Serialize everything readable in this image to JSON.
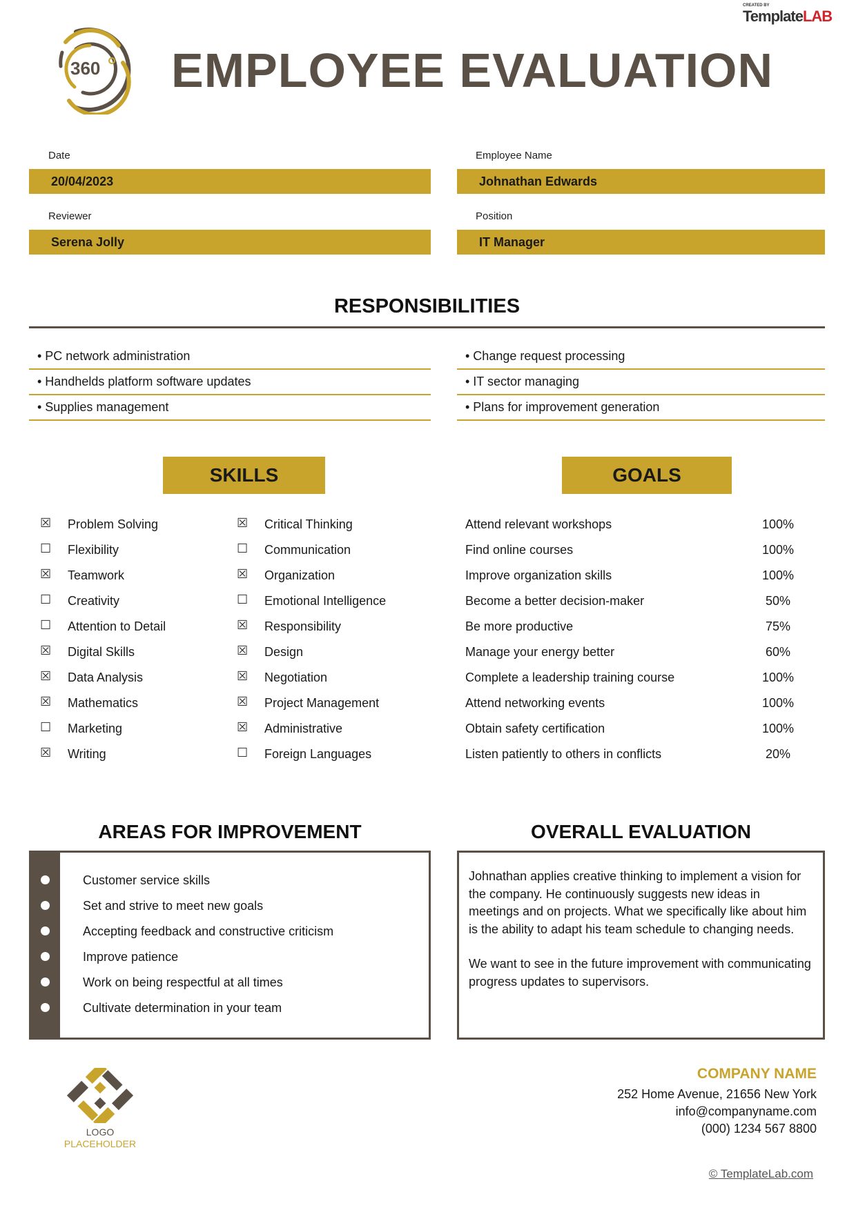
{
  "header": {
    "title": "EMPLOYEE EVALUATION",
    "logo_text": "360",
    "brand": {
      "created_by": "CREATED BY",
      "template": "Template",
      "lab": "LAB"
    }
  },
  "fields": {
    "date": {
      "label": "Date",
      "value": "20/04/2023"
    },
    "employee_name": {
      "label": "Employee Name",
      "value": "Johnathan Edwards"
    },
    "reviewer": {
      "label": "Reviewer",
      "value": "Serena Jolly"
    },
    "position": {
      "label": "Position",
      "value": "IT Manager"
    }
  },
  "responsibilities": {
    "title": "RESPONSIBILITIES",
    "left": [
      "• PC network administration",
      "• Handhelds platform software updates",
      "• Supplies management"
    ],
    "right": [
      "• Change request processing",
      "• IT sector managing",
      "• Plans for improvement generation"
    ]
  },
  "skills": {
    "title": "SKILLS",
    "col1": [
      {
        "label": "Problem Solving",
        "checked": true
      },
      {
        "label": "Flexibility",
        "checked": false
      },
      {
        "label": "Teamwork",
        "checked": true
      },
      {
        "label": "Creativity",
        "checked": false
      },
      {
        "label": "Attention to Detail",
        "checked": false
      },
      {
        "label": "Digital Skills",
        "checked": true
      },
      {
        "label": "Data Analysis",
        "checked": true
      },
      {
        "label": "Mathematics",
        "checked": true
      },
      {
        "label": "Marketing",
        "checked": false
      },
      {
        "label": "Writing",
        "checked": true
      }
    ],
    "col2": [
      {
        "label": "Critical Thinking",
        "checked": true
      },
      {
        "label": "Communication",
        "checked": false
      },
      {
        "label": "Organization",
        "checked": true
      },
      {
        "label": "Emotional Intelligence",
        "checked": false
      },
      {
        "label": "Responsibility",
        "checked": true
      },
      {
        "label": "Design",
        "checked": true
      },
      {
        "label": "Negotiation",
        "checked": true
      },
      {
        "label": "Project Management",
        "checked": true
      },
      {
        "label": "Administrative",
        "checked": true
      },
      {
        "label": "Foreign Languages",
        "checked": false
      }
    ]
  },
  "goals": {
    "title": "GOALS",
    "items": [
      {
        "label": "Attend relevant workshops",
        "pct": "100%"
      },
      {
        "label": "Find online courses",
        "pct": "100%"
      },
      {
        "label": "Improve organization skills",
        "pct": "100%"
      },
      {
        "label": "Become a better decision-maker",
        "pct": "50%"
      },
      {
        "label": "Be more productive",
        "pct": "75%"
      },
      {
        "label": "Manage your energy better",
        "pct": "60%"
      },
      {
        "label": "Complete a leadership training course",
        "pct": "100%"
      },
      {
        "label": "Attend networking events",
        "pct": "100%"
      },
      {
        "label": "Obtain safety certification",
        "pct": "100%"
      },
      {
        "label": "Listen patiently to others in conflicts",
        "pct": "20%"
      }
    ]
  },
  "improvement": {
    "title": "AREAS FOR IMPROVEMENT",
    "items": [
      "Customer service skills",
      "Set and strive to meet new goals",
      "Accepting feedback and constructive criticism",
      "Improve patience",
      "Work on being respectful at all times",
      "Cultivate determination in your team"
    ]
  },
  "overall": {
    "title": "OVERALL EVALUATION",
    "p1": "Johnathan applies creative thinking to implement a vision for the company. He continuously suggests new ideas in meetings and on projects. What we specifically like about him is the ability to adapt his team schedule to changing needs.",
    "p2": "We want to see in the future improvement with communicating progress updates to supervisors."
  },
  "footer": {
    "logo_line1": "LOGO",
    "logo_line2": "PLACEHOLDER",
    "company": "COMPANY NAME",
    "address": "252 Home Avenue, 21656 New York",
    "email": "info@companyname.com",
    "phone": "(000) 1234 567 8800",
    "credit": "© TemplateLab.com"
  },
  "colors": {
    "gold": "#c9a42c",
    "brown": "#5a5046"
  }
}
